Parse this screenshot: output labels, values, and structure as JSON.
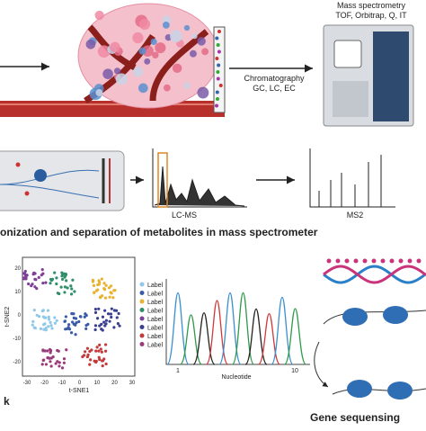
{
  "top": {
    "chromatography": "Chromatography",
    "chromatography_types": "GC, LC, EC",
    "ms_title": "Mass spectrometry",
    "ms_types": "TOF, Orbitrap, Q, IT"
  },
  "middle": {
    "lcms_label": "LC-MS",
    "ms2_label": "MS2",
    "caption": "onization and separation of metabolites in mass spectrometer"
  },
  "tsne": {
    "x_label": "t-SNE1",
    "y_label": "t-SNE2",
    "x_ticks": [
      "-30",
      "-20",
      "-10",
      "0",
      "10",
      "20",
      "30"
    ],
    "y_ticks": [
      "20",
      "10",
      "0",
      "-10",
      "-20"
    ],
    "legend": [
      {
        "label": "Label",
        "color": "#8fc8e8"
      },
      {
        "label": "Label",
        "color": "#3a5ba8"
      },
      {
        "label": "Label",
        "color": "#e8b230"
      },
      {
        "label": "Label",
        "color": "#2f8f6a"
      },
      {
        "label": "Label",
        "color": "#7d3f98"
      },
      {
        "label": "Label",
        "color": "#3a3f8f"
      },
      {
        "label": "Label",
        "color": "#c23a3a"
      },
      {
        "label": "Label",
        "color": "#9a3a7a"
      }
    ]
  },
  "sequencing": {
    "x_label": "Nucleotide",
    "tick_start": "1",
    "tick_end": "10",
    "left_caption": "k",
    "title": "Gene sequensing"
  }
}
